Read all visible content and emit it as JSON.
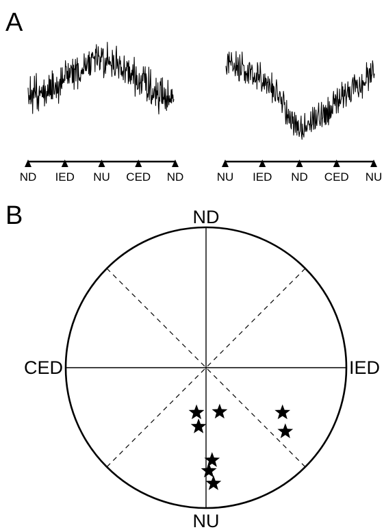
{
  "panel_a": {
    "letter": "A",
    "left": {
      "labels": [
        "ND",
        "IED",
        "NU",
        "CED",
        "ND"
      ],
      "shape": "hump"
    },
    "right": {
      "labels": [
        "NU",
        "IED",
        "ND",
        "CED",
        "NU"
      ],
      "shape": "valley"
    }
  },
  "panel_b": {
    "letter": "B",
    "labels": {
      "top": "ND",
      "bottom": "NU",
      "left": "CED",
      "right": "IED"
    },
    "stars": [
      {
        "dx": -0.068,
        "dy": 0.32
      },
      {
        "dx": 0.097,
        "dy": 0.315
      },
      {
        "dx": -0.053,
        "dy": 0.42
      },
      {
        "dx": 0.545,
        "dy": 0.32
      },
      {
        "dx": 0.565,
        "dy": 0.455
      },
      {
        "dx": 0.043,
        "dy": 0.66
      },
      {
        "dx": 0.02,
        "dy": 0.735
      },
      {
        "dx": 0.053,
        "dy": 0.825
      }
    ]
  }
}
